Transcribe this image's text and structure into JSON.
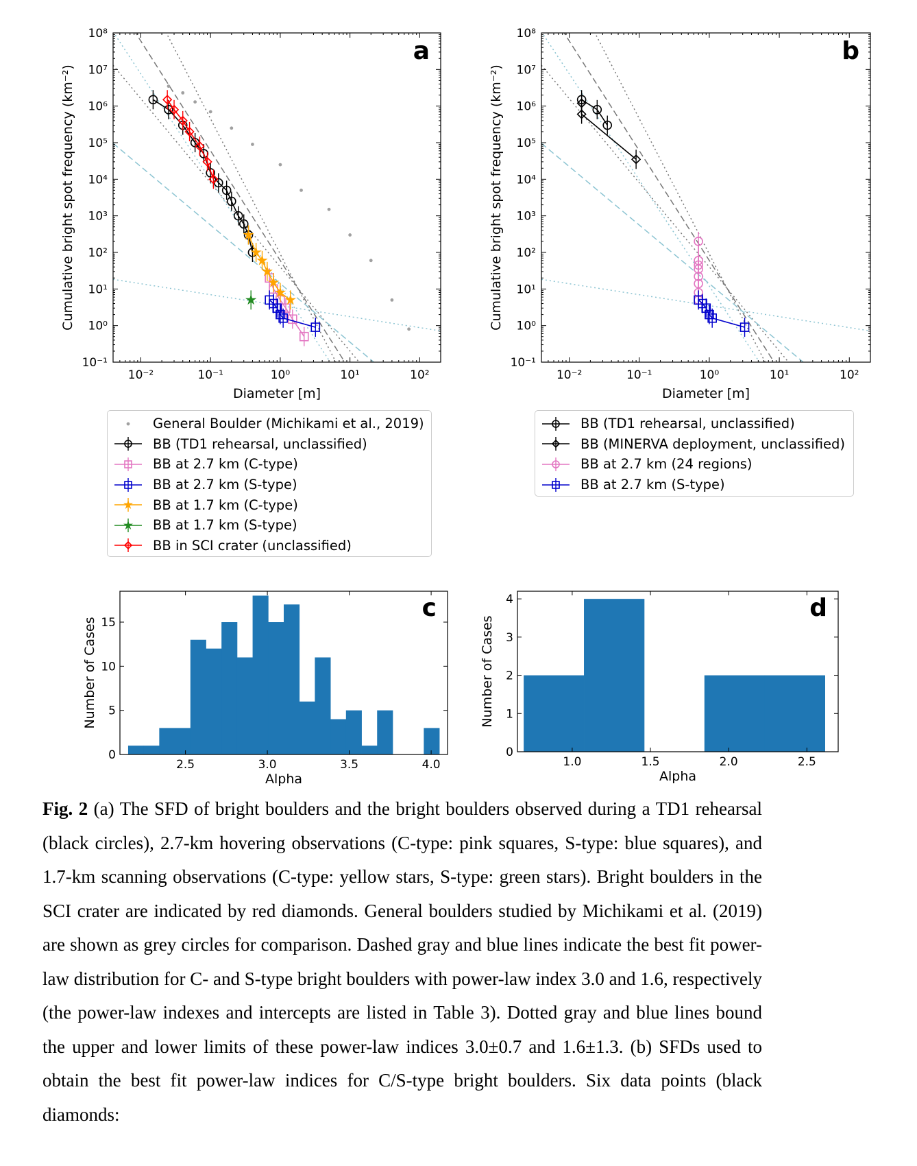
{
  "chart_data": [
    {
      "panel": "a",
      "type": "scatter",
      "xlabel": "Diameter [m]",
      "ylabel": "Cumulative bright spot frequency (km⁻²)",
      "xscale": "log",
      "yscale": "log",
      "xlim": [
        0.004,
        200
      ],
      "ylim": [
        0.1,
        100000000
      ],
      "xticks": [
        0.01,
        0.1,
        1,
        10,
        100
      ],
      "xtick_labels": [
        "10⁻²",
        "10⁻¹",
        "10⁰",
        "10¹",
        "10²"
      ],
      "yticks": [
        0.1,
        1,
        10,
        100,
        1000,
        10000,
        100000,
        1000000,
        10000000,
        100000000
      ],
      "ytick_labels": [
        "10⁻¹",
        "10⁰",
        "10¹",
        "10²",
        "10³",
        "10⁴",
        "10⁵",
        "10⁶",
        "10⁷",
        "10⁸"
      ],
      "legend_placement": "below",
      "fit_lines": [
        {
          "style": "dashed-gray",
          "index": 3.0
        },
        {
          "style": "dotted-gray",
          "index": 3.7
        },
        {
          "style": "dotted-gray",
          "index": 2.3
        },
        {
          "style": "dashed-blue",
          "index": 1.6
        },
        {
          "style": "dotted-blue",
          "index": 2.9
        },
        {
          "style": "dotted-blue",
          "index": 0.3
        }
      ],
      "series": [
        {
          "name": "General Boulder (Michikami et al., 2019)",
          "color": "#a0a0a0",
          "marker": "dot",
          "x": [
            0.025,
            0.04,
            0.06,
            0.1,
            0.2,
            0.4,
            1.0,
            2.0,
            5.0,
            10,
            20,
            40,
            70
          ],
          "y": [
            3500000,
            2300000,
            1300000,
            700000,
            250000,
            90000,
            25000,
            5000,
            1500,
            300,
            60,
            5,
            0.8
          ]
        },
        {
          "name": "BB (TD1 rehearsal, unclassified)",
          "color": "#000000",
          "marker": "circle",
          "x": [
            0.015,
            0.025,
            0.04,
            0.06,
            0.08,
            0.1,
            0.13,
            0.17,
            0.2,
            0.25,
            0.3,
            0.35,
            0.4
          ],
          "y": [
            1500000,
            800000,
            300000,
            100000,
            50000,
            15000,
            8000,
            5000,
            2500,
            1000,
            600,
            300,
            100
          ]
        },
        {
          "name": "BB at 2.7 km (C-type)",
          "color": "#e377c2",
          "marker": "square",
          "x": [
            0.7,
            0.8,
            1.0,
            1.2,
            1.5,
            2.2
          ],
          "y": [
            20,
            10,
            5,
            3,
            1.5,
            0.5
          ]
        },
        {
          "name": "BB at 2.7 km (S-type)",
          "color": "#0000cc",
          "marker": "square",
          "x": [
            0.7,
            0.8,
            0.9,
            1.0,
            1.1,
            3.2
          ],
          "y": [
            5,
            4,
            3,
            2,
            1.6,
            0.9
          ]
        },
        {
          "name": "BB at 1.7 km (C-type)",
          "color": "#ffa500",
          "marker": "star",
          "x": [
            0.35,
            0.45,
            0.55,
            0.65,
            0.8,
            1.0,
            1.4
          ],
          "y": [
            300,
            100,
            60,
            30,
            15,
            8,
            5
          ]
        },
        {
          "name": "BB at 1.7 km (S-type)",
          "color": "#228b22",
          "marker": "star",
          "x": [
            0.38
          ],
          "y": [
            5
          ]
        },
        {
          "name": "BB in SCI crater (unclassified)",
          "color": "#ff0000",
          "marker": "diamond",
          "x": [
            0.024,
            0.03,
            0.04,
            0.05,
            0.07,
            0.09,
            0.11
          ],
          "y": [
            1500000,
            800000,
            400000,
            200000,
            80000,
            30000,
            10000
          ]
        }
      ]
    },
    {
      "panel": "b",
      "type": "scatter",
      "xlabel": "Diameter [m]",
      "ylabel": "Cumulative bright spot frequency (km⁻²)",
      "xscale": "log",
      "yscale": "log",
      "xlim": [
        0.004,
        200
      ],
      "ylim": [
        0.1,
        100000000
      ],
      "legend_placement": "below",
      "series": [
        {
          "name": "BB (TD1 rehearsal, unclassified)",
          "color": "#000000",
          "marker": "circle",
          "x": [
            0.015,
            0.025,
            0.035
          ],
          "y": [
            1500000,
            800000,
            300000
          ]
        },
        {
          "name": "BB (MINERVA deployment, unclassified)",
          "color": "#000000",
          "marker": "diamond",
          "x": [
            0.015,
            0.015,
            0.09
          ],
          "y": [
            1200000,
            600000,
            35000
          ]
        },
        {
          "name": "BB at 2.7 km (24 regions)",
          "color": "#e377c2",
          "marker": "circle",
          "x": [
            0.7,
            0.7,
            0.7,
            0.7,
            0.7,
            0.7,
            0.7,
            0.7
          ],
          "y": [
            200,
            60,
            45,
            35,
            22,
            14,
            8,
            5
          ]
        },
        {
          "name": "BB at 2.7 km (S-type)",
          "color": "#0000cc",
          "marker": "square",
          "x": [
            0.7,
            0.8,
            0.9,
            1.0,
            1.1,
            3.2
          ],
          "y": [
            5,
            4,
            3,
            2,
            1.6,
            0.9
          ]
        }
      ]
    },
    {
      "panel": "c",
      "type": "bar",
      "subtype": "histogram",
      "xlabel": "Alpha",
      "ylabel": "Number of Cases",
      "xlim": [
        2.1,
        4.1
      ],
      "ylim": [
        0,
        18.5
      ],
      "xticks": [
        2.5,
        3.0,
        3.5,
        4.0
      ],
      "xtick_labels": [
        "2.5",
        "3.0",
        "3.5",
        "4.0"
      ],
      "yticks": [
        0,
        5,
        10,
        15
      ],
      "ytick_labels": [
        "0",
        "5",
        "10",
        "15"
      ],
      "bin_edges": [
        2.15,
        2.245,
        2.34,
        2.435,
        2.53,
        2.625,
        2.72,
        2.815,
        2.91,
        3.005,
        3.1,
        3.195,
        3.29,
        3.385,
        3.48,
        3.575,
        3.67,
        3.765,
        3.86,
        3.955,
        4.05
      ],
      "values": [
        1,
        1,
        3,
        3,
        13,
        12,
        15,
        11,
        18,
        15,
        17,
        6,
        11,
        4,
        5,
        1,
        5,
        0,
        0,
        3
      ],
      "color": "#1f77b4"
    },
    {
      "panel": "d",
      "type": "bar",
      "subtype": "histogram",
      "xlabel": "Alpha",
      "ylabel": "Number of Cases",
      "xlim": [
        0.65,
        2.7
      ],
      "ylim": [
        0,
        4.2
      ],
      "xticks": [
        1.0,
        1.5,
        2.0,
        2.5
      ],
      "xtick_labels": [
        "1.0",
        "1.5",
        "2.0",
        "2.5"
      ],
      "yticks": [
        0,
        1,
        2,
        3,
        4
      ],
      "ytick_labels": [
        "0",
        "1",
        "2",
        "3",
        "4"
      ],
      "bin_edges": [
        0.69,
        1.075,
        1.46,
        1.845,
        2.23,
        2.615
      ],
      "values": [
        2,
        4,
        0,
        2,
        2
      ],
      "color": "#1f77b4"
    }
  ],
  "panel_labels": {
    "a": "a",
    "b": "b",
    "c": "c",
    "d": "d"
  },
  "legend_a": [
    "General Boulder (Michikami et al., 2019)",
    "BB (TD1 rehearsal, unclassified)",
    "BB at 2.7 km (C-type)",
    "BB at 2.7 km (S-type)",
    "BB at 1.7 km (C-type)",
    "BB at 1.7 km (S-type)",
    "BB in SCI crater (unclassified)"
  ],
  "legend_b": [
    "BB (TD1 rehearsal, unclassified)",
    "BB (MINERVA deployment, unclassified)",
    "BB at 2.7 km (24 regions)",
    "BB at 2.7 km (S-type)"
  ],
  "caption": {
    "lead": "Fig. 2",
    "text": " (a) The SFD of bright boulders and the bright boulders observed during a TD1 rehearsal (black circles), 2.7-km hovering observations (C-type: pink squares, S-type: blue squares), and 1.7-km scanning observations (C-type: yellow stars, S-type: green stars). Bright boulders in the SCI crater are indicated by red diamonds. General boulders studied by Michikami et al. (2019) are shown as grey circles for comparison. Dashed gray and blue lines indicate the best fit power-law distribution for C- and S-type bright boulders with power-law index 3.0 and 1.6, respectively (the power-law indexes and intercepts are listed in Table 3). Dotted gray and blue lines bound the upper and lower limits of these power-law indices 3.0±0.7 and 1.6±1.3. (b) SFDs used to obtain the best fit power-law indices for C/S-type bright boulders. Six data points (black diamonds:"
  }
}
